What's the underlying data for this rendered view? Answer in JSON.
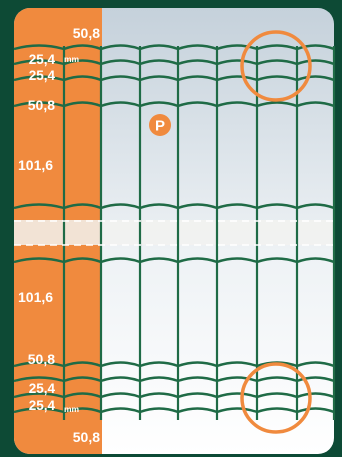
{
  "labels": {
    "top_50": "50,8",
    "top_25a": "25,4",
    "top_25b": "25,4",
    "top_mm": "mm",
    "top_50b": "50,8",
    "mid_101a": "101,6",
    "mid_101b": "101,6",
    "bot_50": "50,8",
    "bot_25a": "25,4",
    "bot_25b": "25,4",
    "bot_mm": "mm",
    "bot_50b": "50,8",
    "badge": "P"
  },
  "colors": {
    "frame": "#0d4a35",
    "orange": "#f08a3e",
    "wire": "#1f6b46",
    "mesh_bg_top": "#c8d3dc",
    "mesh_bg_bottom": "#ffffff"
  }
}
